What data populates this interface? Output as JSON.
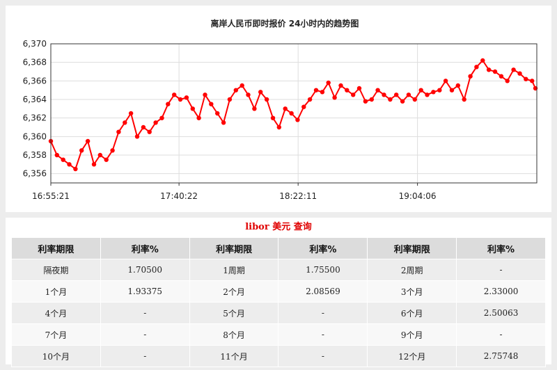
{
  "chart_data": {
    "type": "line",
    "title": "离岸人民币即时报价 24小时内的趋势图",
    "y_ticks": [
      "6,356",
      "6,358",
      "6,360",
      "6,362",
      "6,364",
      "6,366",
      "6,368",
      "6,370"
    ],
    "ylim": [
      6.355,
      6.37
    ],
    "x_ticks": [
      "16:55:21",
      "17:40:22",
      "18:22:11",
      "19:04:06"
    ],
    "x_tick_times": [
      "16:55:21",
      "17:40:22",
      "18:22:11",
      "19:04:06"
    ],
    "xlim": [
      "16:55:21",
      "19:46:00"
    ],
    "grid": true,
    "series_color": "#ff0000",
    "series": [
      {
        "x": [
          "16:55:21",
          "16:57:30",
          "16:59:40",
          "17:01:50",
          "17:04:00",
          "17:06:10",
          "17:08:20",
          "17:10:30",
          "17:12:40",
          "17:14:50",
          "17:17:00",
          "17:19:10",
          "17:21:20",
          "17:23:30",
          "17:25:40",
          "17:27:50",
          "17:30:00",
          "17:32:10",
          "17:34:20",
          "17:36:30",
          "17:38:40",
          "17:40:50",
          "17:43:00",
          "17:45:10",
          "17:47:20",
          "17:49:30",
          "17:51:40",
          "17:53:50",
          "17:56:00",
          "17:58:10",
          "18:00:20",
          "18:02:30",
          "18:04:40",
          "18:06:50",
          "18:09:00",
          "18:11:10",
          "18:13:20",
          "18:15:30",
          "18:17:40",
          "18:19:50",
          "18:22:00",
          "18:24:10",
          "18:26:20",
          "18:28:30",
          "18:30:40",
          "18:32:50",
          "18:35:00",
          "18:37:10",
          "18:39:20",
          "18:41:30",
          "18:43:40",
          "18:45:50",
          "18:48:00",
          "18:50:10",
          "18:52:20",
          "18:54:30",
          "18:56:40",
          "18:58:50",
          "19:01:00",
          "19:03:10",
          "19:05:20",
          "19:07:30",
          "19:09:40",
          "19:11:50",
          "19:14:00",
          "19:16:10",
          "19:18:20",
          "19:20:30",
          "19:22:40",
          "19:24:50",
          "19:27:00",
          "19:29:10",
          "19:31:20",
          "19:33:30",
          "19:35:40",
          "19:37:50",
          "19:40:00",
          "19:42:10",
          "19:44:20",
          "19:45:30"
        ],
        "values": [
          6.3595,
          6.358,
          6.3575,
          6.357,
          6.3565,
          6.3585,
          6.3595,
          6.357,
          6.358,
          6.3575,
          6.3585,
          6.3605,
          6.3615,
          6.3625,
          6.36,
          6.361,
          6.3605,
          6.3615,
          6.362,
          6.3635,
          6.3645,
          6.364,
          6.3642,
          6.363,
          6.362,
          6.3645,
          6.3635,
          6.3625,
          6.3615,
          6.364,
          6.365,
          6.3655,
          6.3645,
          6.363,
          6.3648,
          6.364,
          6.362,
          6.361,
          6.363,
          6.3625,
          6.3618,
          6.3632,
          6.364,
          6.365,
          6.3648,
          6.3658,
          6.3642,
          6.3655,
          6.365,
          6.3645,
          6.3652,
          6.3638,
          6.364,
          6.365,
          6.3645,
          6.364,
          6.3645,
          6.3638,
          6.3645,
          6.364,
          6.365,
          6.3645,
          6.3648,
          6.365,
          6.366,
          6.365,
          6.3655,
          6.364,
          6.3665,
          6.3675,
          6.3682,
          6.3672,
          6.367,
          6.3665,
          6.366,
          6.3672,
          6.3668,
          6.3662,
          6.366,
          6.3652
        ]
      }
    ]
  },
  "rates": {
    "title": "libor 美元 查询",
    "headers": [
      "利率期限",
      "利率%",
      "利率期限",
      "利率%",
      "利率期限",
      "利率%"
    ],
    "rows": [
      [
        "隔夜期",
        "1.70500",
        "1周期",
        "1.75500",
        "2周期",
        "-"
      ],
      [
        "1个月",
        "1.93375",
        "2个月",
        "2.08569",
        "3个月",
        "2.33000"
      ],
      [
        "4个月",
        "-",
        "5个月",
        "-",
        "6个月",
        "2.50063"
      ],
      [
        "7个月",
        "-",
        "8个月",
        "-",
        "9个月",
        "-"
      ],
      [
        "10个月",
        "-",
        "11个月",
        "-",
        "12个月",
        "2.75748"
      ]
    ]
  }
}
